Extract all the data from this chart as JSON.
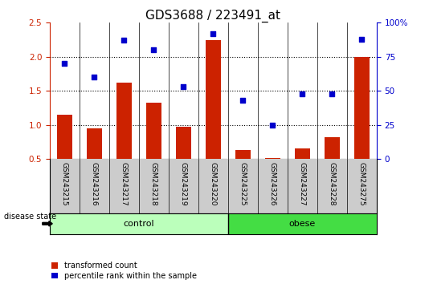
{
  "title": "GDS3688 / 223491_at",
  "samples": [
    "GSM243215",
    "GSM243216",
    "GSM243217",
    "GSM243218",
    "GSM243219",
    "GSM243220",
    "GSM243225",
    "GSM243226",
    "GSM243227",
    "GSM243228",
    "GSM243275"
  ],
  "transformed_count": [
    1.15,
    0.95,
    1.62,
    1.33,
    0.97,
    2.25,
    0.63,
    0.51,
    0.66,
    0.82,
    2.0
  ],
  "percentile_rank": [
    70,
    60,
    87,
    80,
    53,
    92,
    43,
    25,
    48,
    48,
    88
  ],
  "control_indices": [
    0,
    1,
    2,
    3,
    4,
    5
  ],
  "obese_indices": [
    6,
    7,
    8,
    9,
    10
  ],
  "bar_color": "#cc2200",
  "dot_color": "#0000cc",
  "left_ylim": [
    0.5,
    2.5
  ],
  "right_ylim": [
    0,
    100
  ],
  "left_yticks": [
    0.5,
    1.0,
    1.5,
    2.0,
    2.5
  ],
  "right_yticks": [
    0,
    25,
    50,
    75,
    100
  ],
  "right_yticklabels": [
    "0",
    "25",
    "50",
    "75",
    "100%"
  ],
  "dotted_lines": [
    1.0,
    1.5,
    2.0
  ],
  "control_label": "control",
  "obese_label": "obese",
  "disease_state_label": "disease state",
  "legend_bar_label": "transformed count",
  "legend_dot_label": "percentile rank within the sample",
  "control_color": "#bbffbb",
  "obese_color": "#44dd44",
  "tick_area_color": "#cccccc",
  "bar_width": 0.5,
  "title_fontsize": 11,
  "tick_fontsize": 6.5
}
